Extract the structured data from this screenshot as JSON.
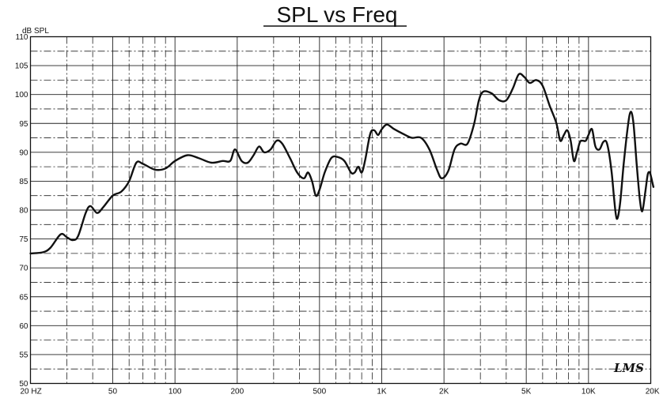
{
  "chart_data": {
    "type": "line",
    "title": "SPL vs Freq",
    "ylabel": "dB SPL",
    "xlabel": "",
    "x_scale": "log",
    "xlim": [
      20,
      20000
    ],
    "ylim": [
      50,
      110
    ],
    "grid": true,
    "y_ticks": [
      50,
      55,
      60,
      65,
      70,
      75,
      80,
      85,
      90,
      95,
      100,
      105,
      110
    ],
    "x_tick_labels": [
      {
        "value": 20,
        "label": "20  HZ"
      },
      {
        "value": 50,
        "label": "50"
      },
      {
        "value": 100,
        "label": "100"
      },
      {
        "value": 200,
        "label": "200"
      },
      {
        "value": 500,
        "label": "500"
      },
      {
        "value": 1000,
        "label": "1K"
      },
      {
        "value": 2000,
        "label": "2K"
      },
      {
        "value": 5000,
        "label": "5K"
      },
      {
        "value": 10000,
        "label": "10K"
      },
      {
        "value": 20000,
        "label": "20K"
      }
    ],
    "logo": "LMS",
    "series": [
      {
        "values": [
          [
            20,
            72.5
          ],
          [
            23,
            72.7
          ],
          [
            25,
            73.5
          ],
          [
            28,
            75.8
          ],
          [
            30,
            75.3
          ],
          [
            32,
            74.8
          ],
          [
            34,
            75.5
          ],
          [
            37,
            79.5
          ],
          [
            39,
            80.7
          ],
          [
            42,
            79.5
          ],
          [
            45,
            80.5
          ],
          [
            50,
            82.5
          ],
          [
            55,
            83.2
          ],
          [
            60,
            85
          ],
          [
            65,
            88.2
          ],
          [
            70,
            88
          ],
          [
            80,
            87
          ],
          [
            90,
            87.2
          ],
          [
            100,
            88.5
          ],
          [
            115,
            89.5
          ],
          [
            130,
            89
          ],
          [
            150,
            88.2
          ],
          [
            170,
            88.5
          ],
          [
            185,
            88.5
          ],
          [
            195,
            90.5
          ],
          [
            210,
            88.5
          ],
          [
            225,
            88.2
          ],
          [
            240,
            89.5
          ],
          [
            255,
            91
          ],
          [
            270,
            90
          ],
          [
            290,
            90.5
          ],
          [
            310,
            92
          ],
          [
            330,
            91.5
          ],
          [
            360,
            89
          ],
          [
            390,
            86.5
          ],
          [
            420,
            85.5
          ],
          [
            440,
            86.5
          ],
          [
            460,
            85
          ],
          [
            480,
            82.5
          ],
          [
            500,
            83.5
          ],
          [
            530,
            86.5
          ],
          [
            570,
            89
          ],
          [
            610,
            89.2
          ],
          [
            660,
            88.5
          ],
          [
            710,
            86.5
          ],
          [
            740,
            86.5
          ],
          [
            770,
            87.5
          ],
          [
            800,
            86.5
          ],
          [
            830,
            88.5
          ],
          [
            880,
            93.2
          ],
          [
            920,
            93.8
          ],
          [
            960,
            93
          ],
          [
            1000,
            94
          ],
          [
            1060,
            94.8
          ],
          [
            1150,
            94
          ],
          [
            1300,
            93
          ],
          [
            1400,
            92.5
          ],
          [
            1550,
            92.5
          ],
          [
            1700,
            90.5
          ],
          [
            1850,
            87
          ],
          [
            1950,
            85.5
          ],
          [
            2100,
            86.8
          ],
          [
            2250,
            90.5
          ],
          [
            2400,
            91.5
          ],
          [
            2600,
            91.5
          ],
          [
            2800,
            95
          ],
          [
            2950,
            99
          ],
          [
            3100,
            100.5
          ],
          [
            3400,
            100.2
          ],
          [
            3700,
            99
          ],
          [
            4000,
            99
          ],
          [
            4300,
            101
          ],
          [
            4600,
            103.5
          ],
          [
            4900,
            103
          ],
          [
            5200,
            102
          ],
          [
            5600,
            102.5
          ],
          [
            6000,
            101.5
          ],
          [
            6500,
            98
          ],
          [
            7000,
            95
          ],
          [
            7300,
            92
          ],
          [
            7600,
            93
          ],
          [
            7900,
            93.8
          ],
          [
            8200,
            92
          ],
          [
            8500,
            88.5
          ],
          [
            8800,
            90
          ],
          [
            9100,
            91.8
          ],
          [
            9400,
            92
          ],
          [
            9700,
            92
          ],
          [
            10000,
            93
          ],
          [
            10400,
            94
          ],
          [
            10800,
            91
          ],
          [
            11300,
            90.5
          ],
          [
            11800,
            91.8
          ],
          [
            12300,
            91.5
          ],
          [
            12900,
            87
          ],
          [
            13300,
            82
          ],
          [
            13700,
            78.5
          ],
          [
            14200,
            81
          ],
          [
            14800,
            88
          ],
          [
            15500,
            94.5
          ],
          [
            16000,
            97
          ],
          [
            16500,
            95
          ],
          [
            17100,
            88
          ],
          [
            17700,
            82
          ],
          [
            18200,
            79.8
          ],
          [
            18800,
            83
          ],
          [
            19300,
            86
          ],
          [
            19700,
            86.6
          ],
          [
            20000,
            86
          ],
          [
            20600,
            84
          ]
        ]
      }
    ]
  }
}
